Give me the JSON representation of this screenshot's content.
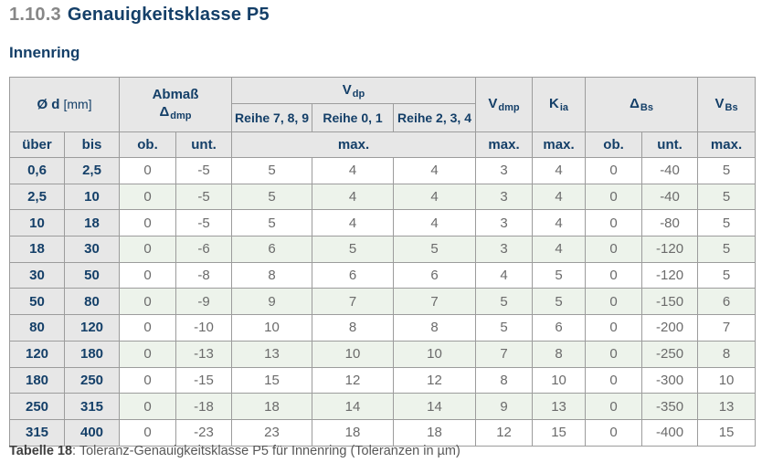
{
  "page": {
    "section_number": "1.10.3",
    "title": "Genauigkeitsklasse P5",
    "subtitle": "Innenring"
  },
  "table": {
    "header": {
      "diameter_symbol": "Ø d",
      "diameter_unit": "[mm]",
      "abmass_label": "Abmaß",
      "abmass_symbol": "Δ",
      "abmass_subscript": "dmp",
      "vdp_symbol": "V",
      "vdp_subscript": "dp",
      "reihe_789": "Reihe 7, 8, 9",
      "reihe_01": "Reihe 0, 1",
      "reihe_234": "Reihe 2, 3, 4",
      "vdmp_symbol": "V",
      "vdmp_subscript": "dmp",
      "kia_symbol": "K",
      "kia_subscript": "ia",
      "dbs_symbol": "Δ",
      "dbs_subscript": "Bs",
      "vbs_symbol": "V",
      "vbs_subscript": "Bs",
      "ueber": "über",
      "bis": "bis",
      "ob": "ob.",
      "unt": "unt.",
      "max": "max."
    },
    "rows": [
      [
        "0,6",
        "2,5",
        "0",
        "-5",
        "5",
        "4",
        "4",
        "3",
        "4",
        "0",
        "-40",
        "5"
      ],
      [
        "2,5",
        "10",
        "0",
        "-5",
        "5",
        "4",
        "4",
        "3",
        "4",
        "0",
        "-40",
        "5"
      ],
      [
        "10",
        "18",
        "0",
        "-5",
        "5",
        "4",
        "4",
        "3",
        "4",
        "0",
        "-80",
        "5"
      ],
      [
        "18",
        "30",
        "0",
        "-6",
        "6",
        "5",
        "5",
        "3",
        "4",
        "0",
        "-120",
        "5"
      ],
      [
        "30",
        "50",
        "0",
        "-8",
        "8",
        "6",
        "6",
        "4",
        "5",
        "0",
        "-120",
        "5"
      ],
      [
        "50",
        "80",
        "0",
        "-9",
        "9",
        "7",
        "7",
        "5",
        "5",
        "0",
        "-150",
        "6"
      ],
      [
        "80",
        "120",
        "0",
        "-10",
        "10",
        "8",
        "8",
        "5",
        "6",
        "0",
        "-200",
        "7"
      ],
      [
        "120",
        "180",
        "0",
        "-13",
        "13",
        "10",
        "10",
        "7",
        "8",
        "0",
        "-250",
        "8"
      ],
      [
        "180",
        "250",
        "0",
        "-15",
        "15",
        "12",
        "12",
        "8",
        "10",
        "0",
        "-300",
        "10"
      ],
      [
        "250",
        "315",
        "0",
        "-18",
        "18",
        "14",
        "14",
        "9",
        "13",
        "0",
        "-350",
        "13"
      ],
      [
        "315",
        "400",
        "0",
        "-23",
        "23",
        "18",
        "18",
        "12",
        "15",
        "0",
        "-400",
        "15"
      ]
    ]
  },
  "caption": {
    "label": "Tabelle 18",
    "text": ": Toleranz-Genauigkeitsklasse P5 für Innenring (Toleranzen in µm)"
  },
  "colors": {
    "heading_blue": "#143f68",
    "section_number_gray": "#878787",
    "data_text_gray": "#6b6b6b",
    "header_bg": "#e7e7e7",
    "row_alt_green": "#edf3eb",
    "border_gray": "#9c9c9c"
  }
}
